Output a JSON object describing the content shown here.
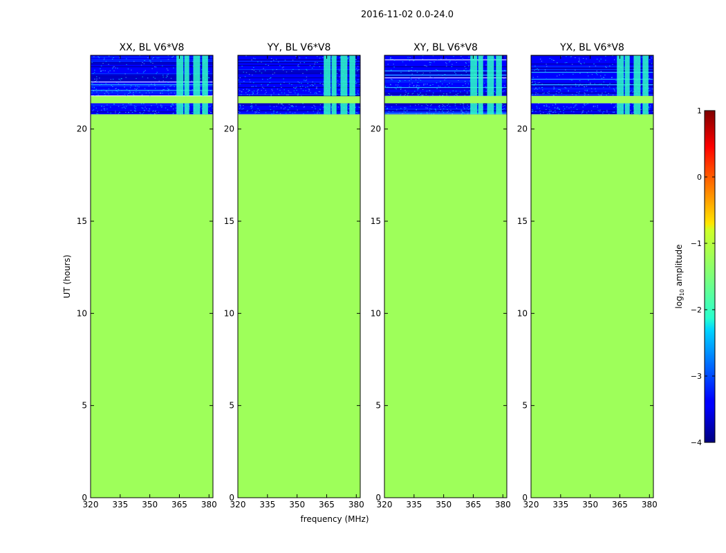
{
  "suptitle": "2016-11-02 0.0-24.0",
  "colors": {
    "fill": "#9eff5a",
    "dark_blue": "#00008f",
    "blue": "#0000ff",
    "mid_blue": "#0040ff",
    "cyan": "#2fffc6",
    "light_cyan": "#4fffa8",
    "axis": "#000000"
  },
  "chart_data": {
    "type": "heatmap",
    "xlabel": "frequency (MHz)",
    "ylabel": "UT (hours)",
    "xlim": [
      320,
      382
    ],
    "ylim": [
      0,
      24
    ],
    "xticks": [
      320,
      335,
      350,
      365,
      380
    ],
    "yticks": [
      0,
      5,
      10,
      15,
      20
    ],
    "panels": [
      {
        "title": "XX, BL V6*V8"
      },
      {
        "title": "YY, BL V6*V8"
      },
      {
        "title": "XY, BL V6*V8"
      },
      {
        "title": "YX, BL V6*V8"
      }
    ],
    "uniform_region": {
      "t_from": 0,
      "t_to": 20.8,
      "log10_amplitude": -1.3
    },
    "data_segments": [
      {
        "t_from": 20.8,
        "t_to": 21.4,
        "log10_amplitude_range": [
          -4,
          -1.7
        ]
      },
      {
        "t_from": 21.4,
        "t_to": 21.8,
        "log10_amplitude": -1.3
      },
      {
        "t_from": 21.8,
        "t_to": 22.5,
        "log10_amplitude_range": [
          -4,
          -1.7
        ]
      },
      {
        "t_from": 22.5,
        "t_to": 24,
        "log10_amplitude_range": [
          -4,
          -1.7
        ]
      }
    ],
    "rfi_bands_mhz": [
      [
        363.5,
        367
      ],
      [
        367.5,
        370
      ],
      [
        372,
        375.5
      ],
      [
        376.5,
        379.5
      ]
    ],
    "colorbar": {
      "label": "log10 amplitude",
      "label_text": "log",
      "label_sub": "10",
      "label_rest": " amplitude",
      "range": [
        -4,
        1
      ],
      "ticks": [
        "1",
        "0",
        "−1",
        "−2",
        "−3",
        "−4"
      ],
      "colormap": "jet"
    }
  }
}
